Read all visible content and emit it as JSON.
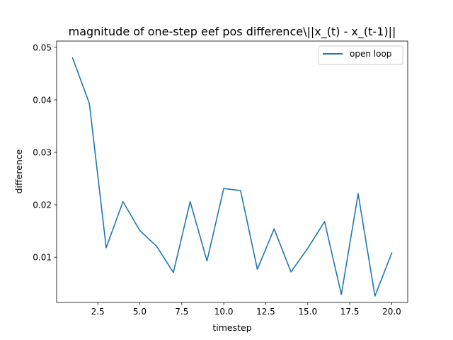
{
  "chart_data": {
    "type": "line",
    "title": "magnitude of one-step eef pos difference\\||x_(t) - x_(t-1)||",
    "xlabel": "timestep",
    "ylabel": "difference",
    "xlim": [
      0.05,
      20.95
    ],
    "ylim": [
      0.00138,
      0.0512
    ],
    "xticks": [
      2.5,
      5.0,
      7.5,
      10.0,
      12.5,
      15.0,
      17.5,
      20.0
    ],
    "xtick_labels": [
      "2.5",
      "5.0",
      "7.5",
      "10.0",
      "12.5",
      "15.0",
      "17.5",
      "20.0"
    ],
    "yticks": [
      0.01,
      0.02,
      0.03,
      0.04,
      0.05
    ],
    "ytick_labels": [
      "0.01",
      "0.02",
      "0.03",
      "0.04",
      "0.05"
    ],
    "grid": false,
    "legend_position": "top-right",
    "series": [
      {
        "name": "open loop",
        "color": "#1f77b4",
        "x": [
          1,
          2,
          3,
          4,
          5,
          6,
          7,
          8,
          9,
          10,
          11,
          12,
          13,
          14,
          15,
          16,
          17,
          18,
          19,
          20
        ],
        "y": [
          0.048,
          0.0393,
          0.0118,
          0.0206,
          0.0151,
          0.0121,
          0.0071,
          0.0206,
          0.0093,
          0.0231,
          0.0227,
          0.0077,
          0.0154,
          0.0072,
          0.0117,
          0.0168,
          0.0029,
          0.0221,
          0.0026,
          0.0108
        ]
      }
    ]
  }
}
